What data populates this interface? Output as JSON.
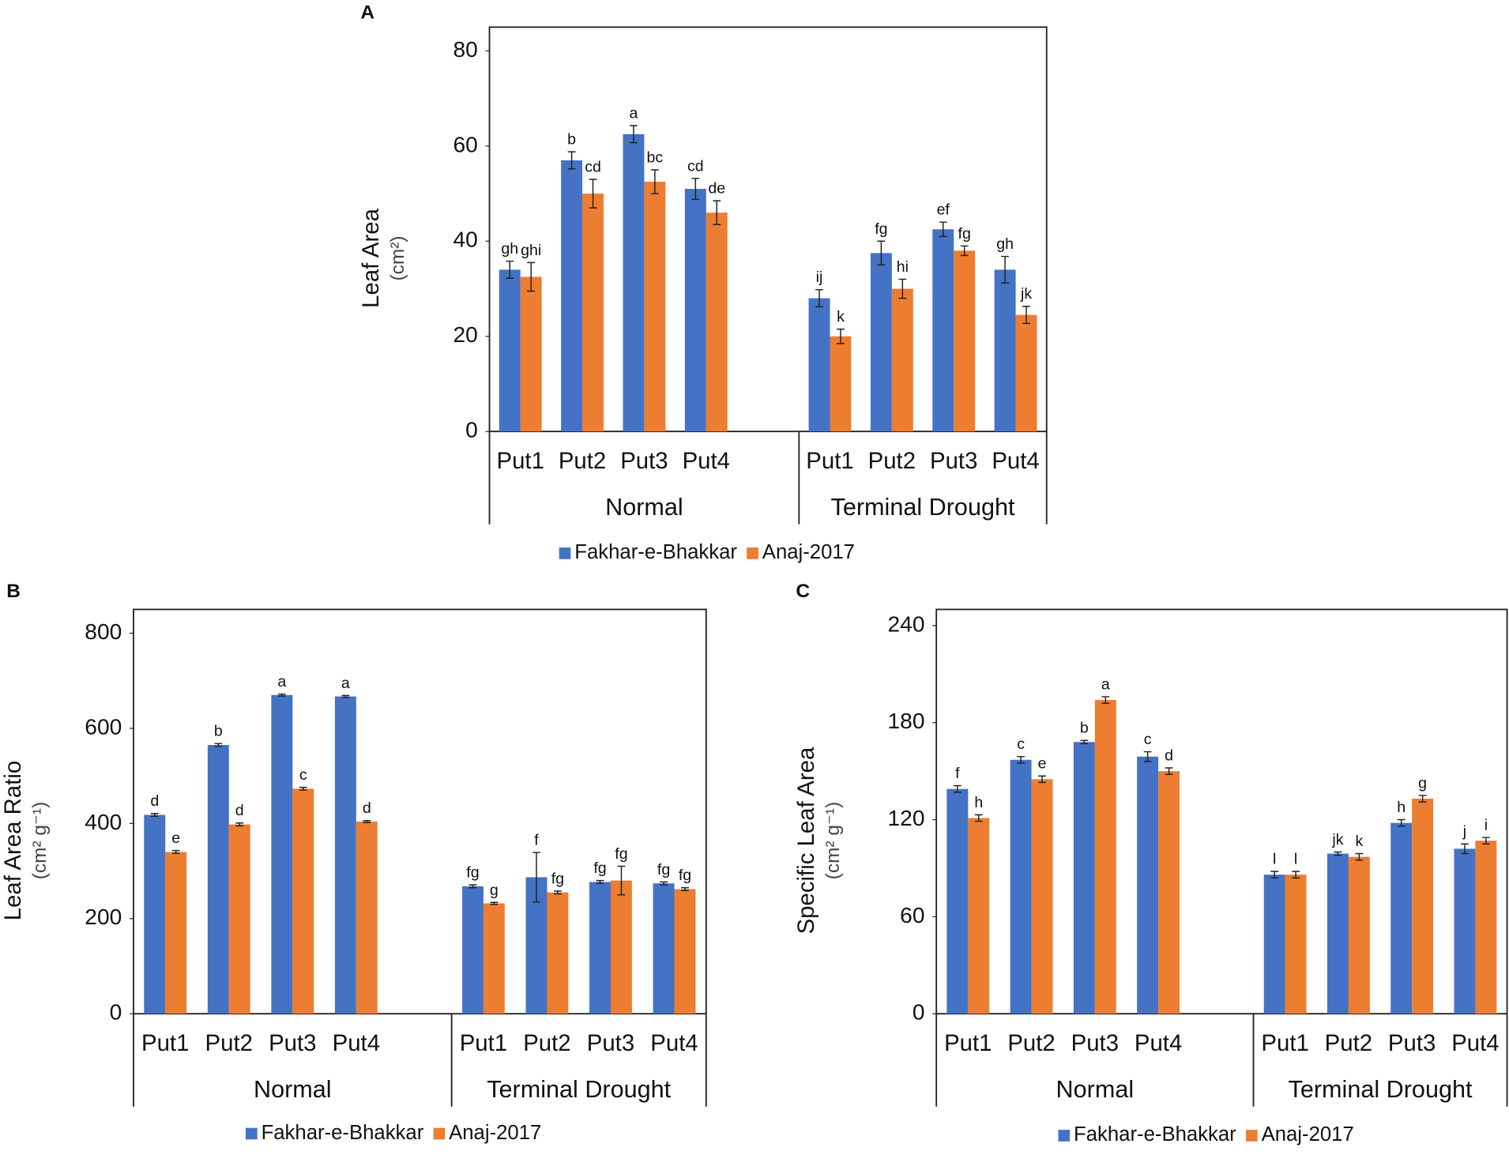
{
  "chart_data": [
    {
      "type": "bar",
      "panel": "A",
      "ylabel": "Leaf Area",
      "yunit": "(cm²)",
      "categories": [
        "Put1",
        "Put2",
        "Put3",
        "Put4",
        "Put1",
        "Put2",
        "Put3",
        "Put4"
      ],
      "groups": [
        "Normal",
        "Terminal Drought"
      ],
      "series": [
        {
          "name": "Fakhar-e-Bhakkar",
          "color": "#4472c4",
          "values": [
            34,
            57,
            62.5,
            51,
            28,
            37.5,
            42.5,
            34
          ],
          "errors": [
            1.8,
            1.8,
            1.8,
            2.2,
            1.8,
            2.5,
            1.5,
            2.8
          ],
          "labels": [
            "gh",
            "b",
            "a",
            "cd",
            "ij",
            "fg",
            "ef",
            "gh"
          ]
        },
        {
          "name": "Anaj-2017",
          "color": "#ed7d31",
          "values": [
            32.5,
            50,
            52.5,
            46,
            20,
            30,
            38,
            24.5
          ],
          "errors": [
            3,
            3,
            2.5,
            2.5,
            1.5,
            2,
            1,
            1.8
          ],
          "labels": [
            "ghi",
            "cd",
            "bc",
            "de",
            "k",
            "hi",
            "fg",
            "jk"
          ]
        }
      ],
      "ylim": [
        0,
        85
      ],
      "yticks": [
        0,
        20,
        40,
        60,
        80
      ],
      "legend": "bottom"
    },
    {
      "type": "bar",
      "panel": "B",
      "ylabel": "Leaf Area Ratio",
      "yunit": "(cm² g⁻¹)",
      "categories": [
        "Put1",
        "Put2",
        "Put3",
        "Put4",
        "Put1",
        "Put2",
        "Put3",
        "Put4"
      ],
      "groups": [
        "Normal",
        "Terminal Drought"
      ],
      "series": [
        {
          "name": "Fakhar-e-Bhakkar",
          "color": "#4472c4",
          "values": [
            418,
            565,
            670,
            667,
            268,
            287,
            277,
            274
          ],
          "errors": [
            3,
            3,
            2,
            2,
            3,
            52,
            3,
            3
          ],
          "labels": [
            "d",
            "b",
            "a",
            "a",
            "fg",
            "f",
            "fg",
            "fg"
          ]
        },
        {
          "name": "Anaj-2017",
          "color": "#ed7d31",
          "values": [
            340,
            398,
            473,
            404,
            232,
            255,
            280,
            262
          ],
          "errors": [
            3,
            3,
            3,
            2,
            2,
            3,
            30,
            3
          ],
          "labels": [
            "e",
            "d",
            "c",
            "d",
            "g",
            "fg",
            "fg",
            "fg"
          ]
        }
      ],
      "ylim": [
        0,
        850
      ],
      "yticks": [
        0,
        200,
        400,
        600,
        800
      ],
      "legend": "bottom"
    },
    {
      "type": "bar",
      "panel": "C",
      "ylabel": "Specific Leaf Area",
      "yunit": "(cm² g⁻¹)",
      "categories": [
        "Put1",
        "Put2",
        "Put3",
        "Put4",
        "Put1",
        "Put2",
        "Put3",
        "Put4"
      ],
      "groups": [
        "Normal",
        "Terminal Drought"
      ],
      "series": [
        {
          "name": "Fakhar-e-Bhakkar",
          "color": "#4472c4",
          "values": [
            139,
            157,
            168,
            159,
            86,
            99,
            118,
            102
          ],
          "errors": [
            2,
            2,
            1,
            3,
            2,
            1,
            2,
            3
          ],
          "labels": [
            "f",
            "c",
            "b",
            "c",
            "l",
            "jk",
            "h",
            "j"
          ]
        },
        {
          "name": "Anaj-2017",
          "color": "#ed7d31",
          "values": [
            121,
            145,
            194,
            150,
            86,
            97,
            133,
            107
          ],
          "errors": [
            2,
            2,
            2,
            2,
            2,
            2,
            2,
            2
          ],
          "labels": [
            "h",
            "e",
            "a",
            "d",
            "l",
            "k",
            "g",
            "i"
          ]
        }
      ],
      "ylim": [
        0,
        250
      ],
      "yticks": [
        0,
        60,
        120,
        180,
        240
      ],
      "legend": "bottom"
    }
  ]
}
